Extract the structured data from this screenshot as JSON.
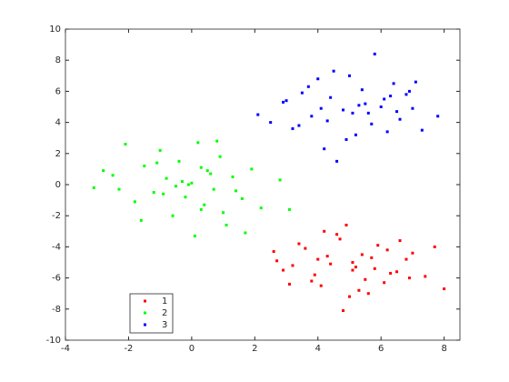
{
  "chart_data": {
    "type": "scatter",
    "xlim": [
      -4,
      8.5
    ],
    "ylim": [
      -10,
      10
    ],
    "xticks": [
      -4,
      -2,
      0,
      2,
      4,
      6,
      8
    ],
    "yticks": [
      -10,
      -8,
      -6,
      -4,
      -2,
      0,
      2,
      4,
      6,
      8,
      10
    ],
    "grid": false,
    "legend_loc": "southwest",
    "series": [
      {
        "name": "1",
        "color": "#ff0000",
        "x": [
          5.1,
          4.3,
          5.8,
          6.2,
          3.9,
          4.7,
          5.5,
          6.8,
          3.2,
          2.6,
          7.4,
          5.0,
          4.1,
          5.9,
          6.5,
          3.6,
          4.9,
          5.3,
          7.0,
          2.9,
          4.4,
          5.7,
          6.1,
          3.4,
          4.8,
          5.2,
          6.9,
          7.7,
          8.0,
          3.8,
          4.6,
          5.4,
          6.3,
          2.7,
          5.6,
          4.2,
          5.1,
          6.6,
          3.1,
          4.0
        ],
        "values": [
          -5.0,
          -4.6,
          -5.4,
          -4.2,
          -5.8,
          -3.5,
          -6.1,
          -4.8,
          -5.2,
          -4.3,
          -5.9,
          -7.2,
          -6.5,
          -3.9,
          -5.6,
          -4.1,
          -2.6,
          -6.8,
          -4.4,
          -5.5,
          -5.1,
          -4.7,
          -6.3,
          -3.8,
          -8.1,
          -5.3,
          -6.0,
          -4.0,
          -6.7,
          -6.2,
          -3.2,
          -4.5,
          -5.7,
          -4.9,
          -7.0,
          -3.0,
          -5.5,
          -3.6,
          -6.4,
          -4.8
        ]
      },
      {
        "name": "2",
        "color": "#00ff00",
        "x": [
          -3.1,
          -2.5,
          -2.1,
          -1.8,
          -1.5,
          -1.2,
          -1.0,
          -0.8,
          -0.6,
          -0.4,
          -0.2,
          0.0,
          0.2,
          0.3,
          0.5,
          0.7,
          0.9,
          1.1,
          1.3,
          1.6,
          1.9,
          2.2,
          2.8,
          3.1,
          -2.8,
          -1.6,
          -0.9,
          -0.3,
          0.4,
          0.8,
          1.4,
          -1.1,
          0.1,
          0.6,
          -0.5,
          1.0,
          -2.3,
          1.7,
          0.3,
          -0.1
        ],
        "values": [
          -0.2,
          0.6,
          2.6,
          -1.1,
          1.2,
          -0.5,
          2.2,
          0.4,
          -2.0,
          1.5,
          -0.8,
          0.1,
          2.7,
          -1.6,
          0.9,
          -0.3,
          1.8,
          -2.6,
          0.5,
          -0.9,
          1.0,
          -1.5,
          0.3,
          -1.6,
          0.9,
          -2.3,
          -0.6,
          0.2,
          -1.3,
          2.8,
          -0.4,
          1.4,
          -3.3,
          0.7,
          -0.1,
          -1.8,
          -0.3,
          -3.1,
          1.1,
          0.0
        ]
      },
      {
        "name": "3",
        "color": "#0000ff",
        "x": [
          2.1,
          2.5,
          2.9,
          3.2,
          3.5,
          3.8,
          4.0,
          4.2,
          4.4,
          4.6,
          4.8,
          5.0,
          5.2,
          5.4,
          5.6,
          5.8,
          6.0,
          6.2,
          6.4,
          6.6,
          6.8,
          7.0,
          7.3,
          7.8,
          3.0,
          3.7,
          4.1,
          4.5,
          4.9,
          5.3,
          5.7,
          6.1,
          6.5,
          6.9,
          5.5,
          4.3,
          5.1,
          3.4,
          6.3,
          7.1
        ],
        "values": [
          4.5,
          4.0,
          5.3,
          3.6,
          5.9,
          4.4,
          6.8,
          2.3,
          5.6,
          1.5,
          4.8,
          7.0,
          3.2,
          6.1,
          4.6,
          8.4,
          5.0,
          3.4,
          6.5,
          4.2,
          5.8,
          4.9,
          3.5,
          4.4,
          5.4,
          6.3,
          4.9,
          7.3,
          2.9,
          5.1,
          3.9,
          5.5,
          4.7,
          6.0,
          5.2,
          4.1,
          4.6,
          3.8,
          5.7,
          6.6
        ]
      }
    ]
  }
}
